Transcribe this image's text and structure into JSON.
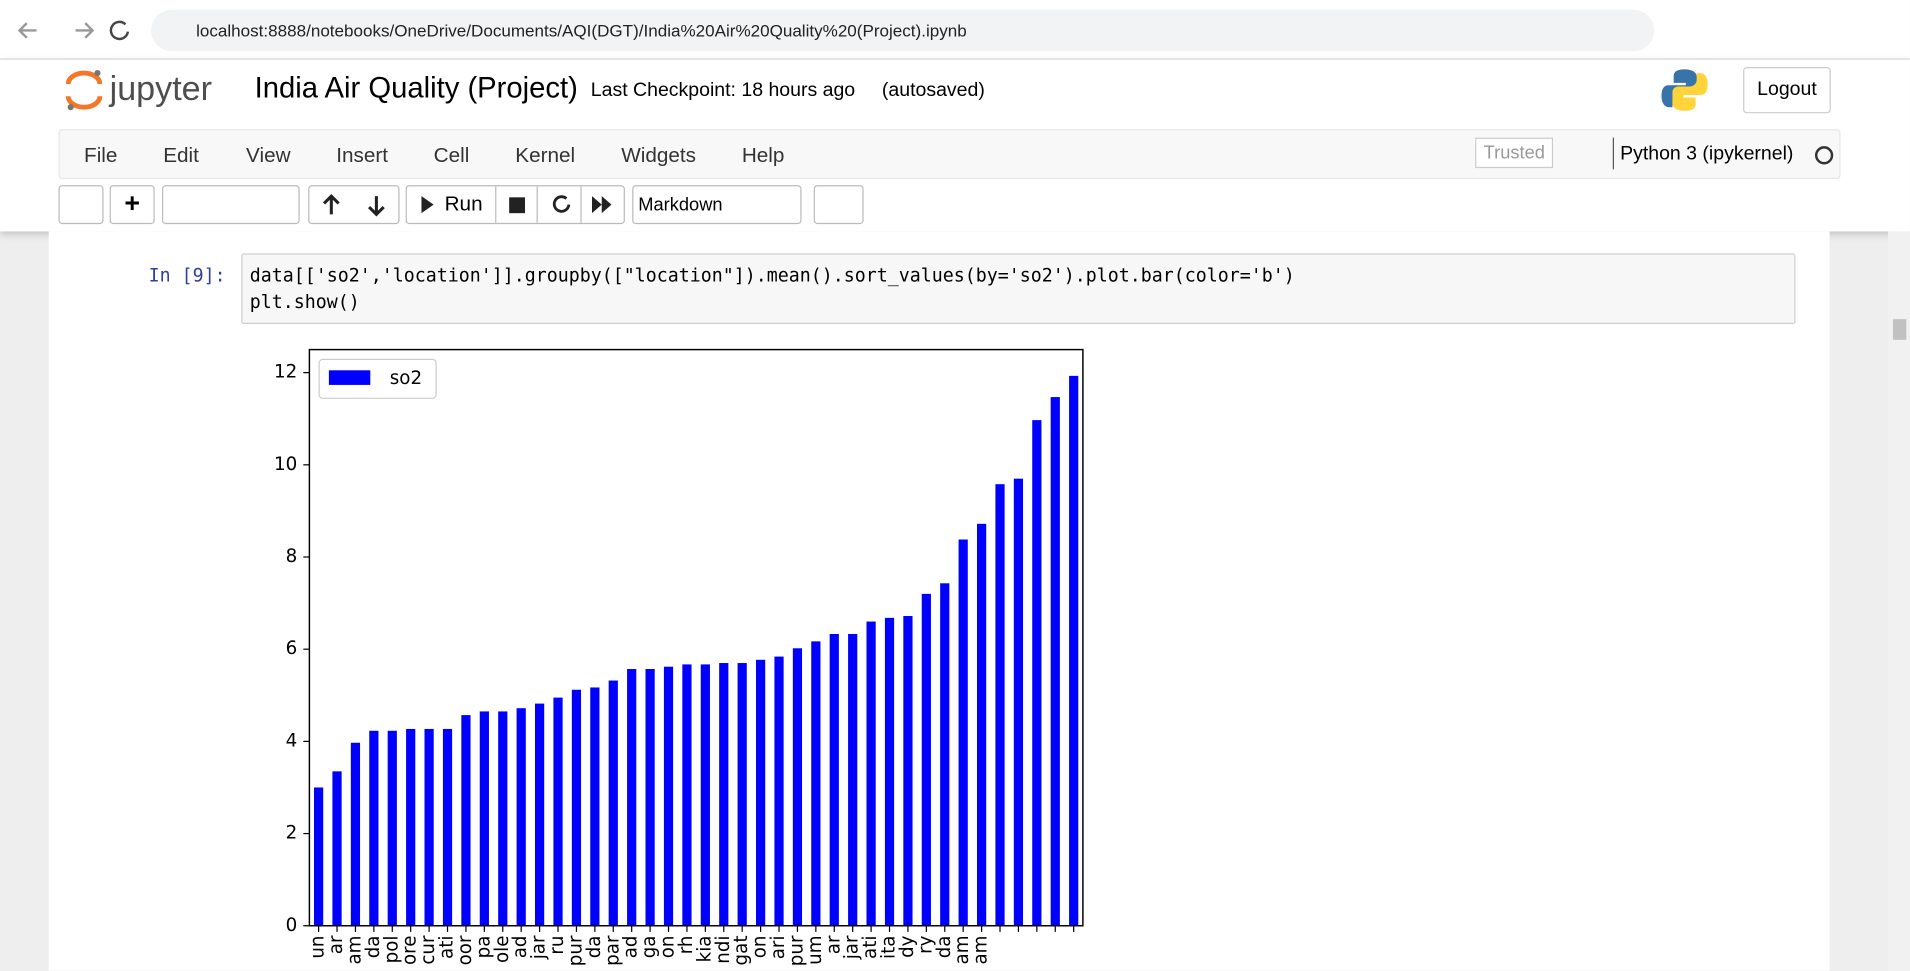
{
  "browser": {
    "url": "localhost:8888/notebooks/OneDrive/Documents/AQI(DGT)/India%20Air%20Quality%20(Project).ipynb"
  },
  "header": {
    "logo": "jupyter",
    "title": "India Air Quality (Project)",
    "checkpoint": "Last Checkpoint: 18 hours ago",
    "autosave": "(autosaved)",
    "logout": "Logout"
  },
  "menu": {
    "items": [
      "File",
      "Edit",
      "View",
      "Insert",
      "Cell",
      "Kernel",
      "Widgets",
      "Help"
    ],
    "trusted": "Trusted",
    "kernel": "Python 3 (ipykernel)"
  },
  "toolbar": {
    "run": "Run",
    "cell_type": "Markdown"
  },
  "cell": {
    "prompt": "In [9]:",
    "code": [
      "data[['so2','location']].groupby([\"location\"]).mean().sort_values(by='so2').plot.bar(color='b')",
      "plt.show()"
    ]
  },
  "chart_data": {
    "type": "bar",
    "categories": [
      "un",
      "ar",
      "am",
      "da",
      "pol",
      "ore",
      "cur",
      "ati",
      "oor",
      "pa",
      "ole",
      "ad",
      "jar",
      "ru",
      "pur",
      "da",
      "par",
      "ad",
      "ga",
      "on",
      "rh",
      "kia",
      "ndi",
      "gat",
      "on",
      "ari",
      "pur",
      "um",
      "ar",
      "jar",
      "ati",
      "ita",
      "dy",
      "ry",
      "da",
      "am",
      "am",
      null,
      null,
      null,
      null,
      null
    ],
    "series": [
      {
        "name": "so2",
        "color": "#0000ff",
        "values": [
          3.0,
          3.35,
          3.97,
          4.23,
          4.23,
          4.27,
          4.27,
          4.27,
          4.57,
          4.65,
          4.65,
          4.72,
          4.82,
          4.95,
          5.12,
          5.17,
          5.32,
          5.57,
          5.57,
          5.62,
          5.67,
          5.67,
          5.7,
          5.7,
          5.77,
          5.84,
          6.02,
          6.17,
          6.33,
          6.33,
          6.6,
          6.68,
          6.72,
          7.2,
          7.43,
          8.38,
          8.72,
          9.58,
          9.7,
          10.97,
          11.47,
          11.93
        ]
      }
    ],
    "ylim": [
      0,
      12.5
    ],
    "yticks": [
      0,
      2,
      4,
      6,
      8,
      10,
      12
    ],
    "legend": "upper left"
  }
}
